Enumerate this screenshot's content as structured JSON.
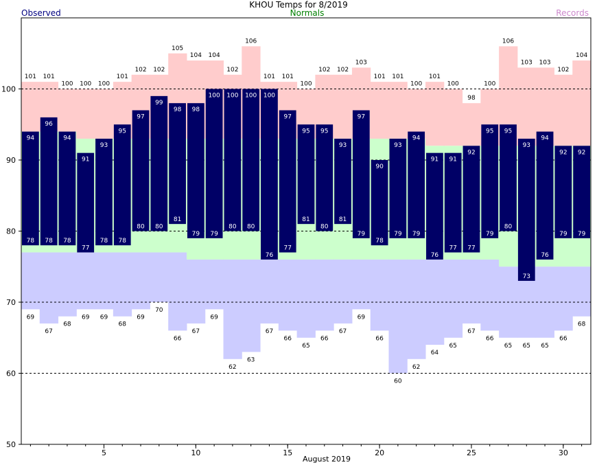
{
  "colors": {
    "observed": "#000066",
    "normal_band": "#ccffcc",
    "record_high_band": "#ffcccc",
    "record_low_band": "#ccccff",
    "legend_observed": "#000080",
    "legend_normals": "#008000",
    "legend_records": "#cc88cc"
  },
  "header": {
    "title": "KHOU Temps for 8/2019",
    "observed_label": "Observed",
    "normals_label": "Normals",
    "records_label": "Records"
  },
  "chart_data": {
    "type": "bar",
    "title": "KHOU Temps for 8/2019",
    "xlabel": "August 2019",
    "ylabel": "",
    "ylim": [
      50,
      110
    ],
    "y_ticks": [
      50,
      60,
      70,
      80,
      90,
      100
    ],
    "x_ticks": [
      5,
      10,
      15,
      20,
      25,
      30
    ],
    "grid_y": [
      60,
      70,
      80,
      90,
      100
    ],
    "days": [
      1,
      2,
      3,
      4,
      5,
      6,
      7,
      8,
      9,
      10,
      11,
      12,
      13,
      14,
      15,
      16,
      17,
      18,
      19,
      20,
      21,
      22,
      23,
      24,
      25,
      26,
      27,
      28,
      29,
      30,
      31
    ],
    "series": [
      {
        "name": "Observed",
        "key": "obs_high",
        "values": [
          94,
          96,
          94,
          91,
          93,
          95,
          97,
          99,
          98,
          98,
          100,
          100,
          100,
          100,
          97,
          95,
          95,
          93,
          97,
          90,
          93,
          94,
          91,
          91,
          92,
          95,
          95,
          93,
          94,
          92,
          92
        ]
      },
      {
        "key": "obs_low",
        "values": [
          78,
          78,
          78,
          77,
          78,
          78,
          80,
          80,
          81,
          79,
          79,
          80,
          80,
          76,
          77,
          81,
          80,
          81,
          79,
          78,
          79,
          79,
          76,
          77,
          77,
          79,
          80,
          73,
          76,
          79,
          79
        ]
      },
      {
        "name": "Normals",
        "key": "normal_high",
        "values": [
          94,
          94,
          94,
          93,
          93,
          93,
          93,
          93,
          93,
          93,
          93,
          93,
          93,
          93,
          93,
          93,
          93,
          93,
          93,
          93,
          93,
          93,
          92,
          92,
          92,
          92,
          92,
          92,
          92,
          92,
          92
        ]
      },
      {
        "key": "normal_low",
        "values": [
          77,
          77,
          77,
          77,
          77,
          77,
          77,
          77,
          77,
          76,
          76,
          76,
          76,
          76,
          76,
          76,
          76,
          76,
          76,
          76,
          76,
          76,
          76,
          76,
          76,
          76,
          75,
          75,
          75,
          75,
          75
        ]
      },
      {
        "name": "Records",
        "key": "record_high",
        "values": [
          101,
          101,
          100,
          100,
          100,
          101,
          102,
          102,
          105,
          104,
          104,
          102,
          106,
          101,
          101,
          100,
          102,
          102,
          103,
          101,
          101,
          100,
          101,
          100,
          98,
          100,
          106,
          103,
          103,
          102,
          104
        ]
      },
      {
        "key": "record_low",
        "values": [
          69,
          67,
          68,
          69,
          69,
          68,
          69,
          70,
          66,
          67,
          69,
          62,
          63,
          67,
          66,
          65,
          66,
          67,
          69,
          66,
          60,
          62,
          64,
          65,
          67,
          66,
          65,
          65,
          65,
          66,
          68
        ]
      }
    ]
  }
}
